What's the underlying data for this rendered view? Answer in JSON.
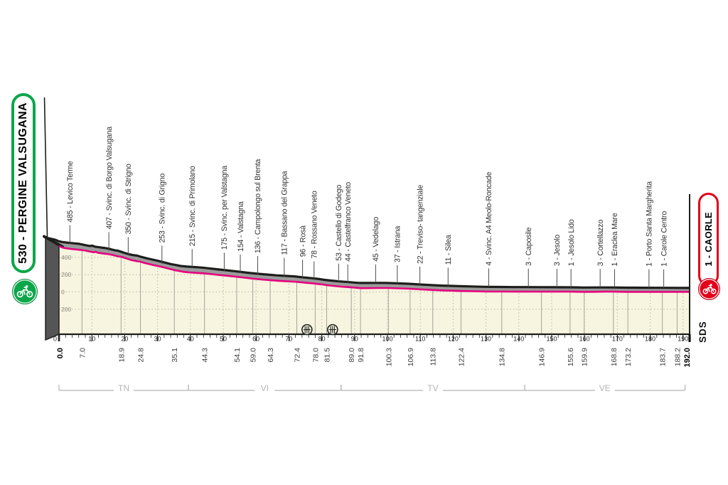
{
  "start_banner": {
    "label": "530 - PERGINE VALSUGANA"
  },
  "finish_banner": {
    "label": "1 - CAORLE"
  },
  "watermark": "SDS",
  "colors": {
    "start_green": "#0CA64A",
    "finish_red": "#E2001A",
    "pink": "#E6007E",
    "profile_fill": "#F7F4DF",
    "band_gray": "#9B9B9B",
    "cap_gray": "#555555",
    "line_black": "#1D1D1B",
    "grid_solid": "#A5A49A",
    "grid_dotted": "#B8B7AA",
    "muted_gray": "#B3B3B3",
    "text_dark": "#333333"
  },
  "chart_data": {
    "type": "area",
    "title": "Stage altimetry profile Pergine Valsugana - Caorle",
    "x_unit": "km",
    "y_unit": "m",
    "x_range": [
      0,
      192
    ],
    "x_major_ticks": [
      0,
      10,
      20,
      30,
      40,
      50,
      60,
      70,
      80,
      90,
      100,
      110,
      120,
      130,
      140,
      150,
      160,
      170,
      180,
      190
    ],
    "y_gridlines": [
      {
        "elev": 400,
        "label": "400"
      },
      {
        "elev": 200,
        "label": "200"
      },
      {
        "elev": 0,
        "label": "0"
      },
      {
        "elev": -200,
        "label": "200"
      }
    ],
    "start": {
      "km": 0.0,
      "elev": 530,
      "km_label": "0.0"
    },
    "finish": {
      "km": 192.0,
      "elev": 1,
      "km_label": "192.0"
    },
    "waypoints": [
      {
        "km": 7.0,
        "elev": 485,
        "label": "485 - Levico Terme",
        "km_label": "7.0"
      },
      {
        "km": 18.9,
        "elev": 407,
        "label": "407 - Svinc. di Borgo Valsugana",
        "km_label": "18.9"
      },
      {
        "km": 24.8,
        "elev": 350,
        "label": "350 - Svinc. di Strigno",
        "km_label": "24.8"
      },
      {
        "km": 35.1,
        "elev": 253,
        "label": "253 - Svinc. di Grigno",
        "km_label": "35.1"
      },
      {
        "km": 44.3,
        "elev": 215,
        "label": "215 - Svinc. di Primolano",
        "km_label": "44.3"
      },
      {
        "km": 54.1,
        "elev": 175,
        "label": "175 - Svinc. per Valstagna",
        "km_label": "54.1"
      },
      {
        "km": 59.0,
        "elev": 154,
        "label": "154 - Valstagna",
        "km_label": "59.0"
      },
      {
        "km": 64.3,
        "elev": 136,
        "label": "136 - Campolongo sul Brenta",
        "km_label": "64.3"
      },
      {
        "km": 72.4,
        "elev": 117,
        "label": "117 - Bassano del Grappa",
        "km_label": "72.4"
      },
      {
        "km": 78.0,
        "elev": 96,
        "label": "96 - Rosà",
        "km_label": "78.0"
      },
      {
        "km": 81.5,
        "elev": 78,
        "label": "78 - Rossano Veneto",
        "km_label": "81.5"
      },
      {
        "km": 89.0,
        "elev": 53,
        "label": "53 - Castello di Godego",
        "km_label": "89.0"
      },
      {
        "km": 91.8,
        "elev": 44,
        "label": "44 - Castelfranco Veneto",
        "km_label": "91.8"
      },
      {
        "km": 100.3,
        "elev": 45,
        "label": "45 - Vedelago",
        "km_label": "100.3"
      },
      {
        "km": 106.9,
        "elev": 37,
        "label": "37 - Istrana",
        "km_label": "106.9"
      },
      {
        "km": 113.8,
        "elev": 22,
        "label": "22 - Treviso- tangenziale",
        "km_label": "113.8"
      },
      {
        "km": 122.4,
        "elev": 11,
        "label": "11 - Silea",
        "km_label": "122.4"
      },
      {
        "km": 134.8,
        "elev": 4,
        "label": "4 - Svinc. A4  Meolo-Roncade",
        "km_label": "134.8"
      },
      {
        "km": 146.9,
        "elev": 3,
        "label": "3 - Caposile",
        "km_label": "146.9"
      },
      {
        "km": 155.6,
        "elev": 3,
        "label": "3 - Jesolo",
        "km_label": "155.6"
      },
      {
        "km": 159.9,
        "elev": 1,
        "label": "1 - Jesolo Lido",
        "km_label": "159.9"
      },
      {
        "km": 168.8,
        "elev": 3,
        "label": "3 - Cortellazzo",
        "km_label": "168.8"
      },
      {
        "km": 173.2,
        "elev": 1,
        "label": "1 - Eraclea Mare",
        "km_label": "173.2"
      },
      {
        "km": 183.7,
        "elev": 1,
        "label": "1 - Porto Santa Margherita",
        "km_label": "183.7"
      },
      {
        "km": 188.2,
        "elev": 1,
        "label": "1 - Carole Centro",
        "km_label": "188.2"
      }
    ],
    "profile_points": [
      [
        0,
        530
      ],
      [
        0.4,
        524
      ],
      [
        1,
        514
      ],
      [
        2,
        505
      ],
      [
        3.5,
        498
      ],
      [
        5,
        492
      ],
      [
        6,
        488
      ],
      [
        7,
        485
      ],
      [
        8,
        478
      ],
      [
        9,
        470
      ],
      [
        9.8,
        464
      ],
      [
        10.6,
        459
      ],
      [
        11.2,
        463
      ],
      [
        12,
        452
      ],
      [
        13,
        447
      ],
      [
        14,
        442
      ],
      [
        15.2,
        436
      ],
      [
        16.3,
        428
      ],
      [
        17.3,
        418
      ],
      [
        18.1,
        411
      ],
      [
        18.9,
        407
      ],
      [
        19.8,
        396
      ],
      [
        21,
        381
      ],
      [
        22.3,
        366
      ],
      [
        23.6,
        356
      ],
      [
        24.8,
        350
      ],
      [
        26,
        336
      ],
      [
        27.5,
        322
      ],
      [
        29,
        309
      ],
      [
        31,
        292
      ],
      [
        33,
        273
      ],
      [
        35.1,
        253
      ],
      [
        36.5,
        243
      ],
      [
        38,
        232
      ],
      [
        40,
        225
      ],
      [
        42,
        220
      ],
      [
        44.3,
        215
      ],
      [
        46.5,
        206
      ],
      [
        48.5,
        197
      ],
      [
        51,
        188
      ],
      [
        54.1,
        175
      ],
      [
        56.5,
        165
      ],
      [
        59,
        154
      ],
      [
        61.5,
        145
      ],
      [
        64.3,
        136
      ],
      [
        67,
        128
      ],
      [
        70,
        122
      ],
      [
        72.4,
        117
      ],
      [
        75,
        106
      ],
      [
        78,
        96
      ],
      [
        80,
        87
      ],
      [
        81.5,
        78
      ],
      [
        83.5,
        70
      ],
      [
        86,
        61
      ],
      [
        89,
        53
      ],
      [
        90.5,
        48
      ],
      [
        91.8,
        44
      ],
      [
        94,
        44
      ],
      [
        97,
        45
      ],
      [
        100.3,
        45
      ],
      [
        103.5,
        41
      ],
      [
        106.9,
        37
      ],
      [
        110.4,
        29
      ],
      [
        113.8,
        22
      ],
      [
        117,
        17
      ],
      [
        120,
        14
      ],
      [
        122.4,
        11
      ],
      [
        126,
        8
      ],
      [
        130,
        5
      ],
      [
        134.8,
        4
      ],
      [
        139,
        3
      ],
      [
        143,
        3
      ],
      [
        146.9,
        3
      ],
      [
        151,
        3
      ],
      [
        155.6,
        3
      ],
      [
        158,
        2
      ],
      [
        159.9,
        1
      ],
      [
        163.5,
        2
      ],
      [
        166.5,
        3
      ],
      [
        168.8,
        3
      ],
      [
        171,
        2
      ],
      [
        173.2,
        1
      ],
      [
        178,
        1
      ],
      [
        183.7,
        1
      ],
      [
        188.2,
        1
      ],
      [
        192,
        1
      ]
    ],
    "provinces": [
      {
        "label": "TN",
        "from_km": 0,
        "to_km": 39.4
      },
      {
        "label": "VI",
        "from_km": 39.4,
        "to_km": 85.9
      },
      {
        "label": "TV",
        "from_km": 85.9,
        "to_km": 141.8
      },
      {
        "label": "VE",
        "from_km": 141.8,
        "to_km": 190.6
      }
    ],
    "level_crossings_km": [
      75.5,
      83.3
    ]
  }
}
